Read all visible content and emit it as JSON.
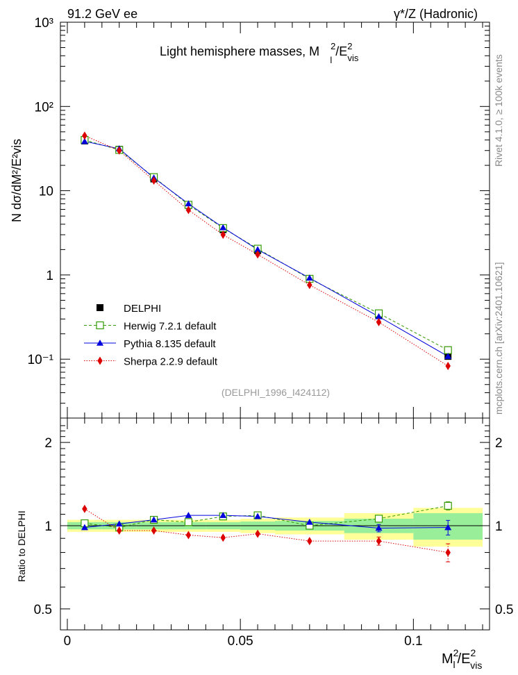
{
  "header": {
    "left": "91.2 GeV ee",
    "right": "γ*/Z (Hadronic)"
  },
  "side_labels": {
    "rivet": "Rivet 4.1.0, ≥ 100k events",
    "mcplots": "mcplots.cern.ch [arXiv:2401.10621]"
  },
  "chart_data": [
    {
      "panel": "main",
      "type": "line",
      "title_main": "Light hemisphere masses, M",
      "title_sup": "2",
      "title_sub": "l",
      "title_tail": "/E",
      "title_tail_sup": "2",
      "title_tail_sub": "vis",
      "ylabel": "N  dσ/dM²/E²vis",
      "yscale": "log",
      "ylim": [
        0.02,
        1000
      ],
      "xlim": [
        -0.002,
        0.122
      ],
      "ytick_labels": [
        "10⁻¹",
        "1",
        "10",
        "10²",
        "10³"
      ],
      "ytick_values": [
        0.1,
        1,
        10,
        100,
        1000
      ],
      "watermark": "(DELPHI_1996_I424112)",
      "x": [
        0.005,
        0.015,
        0.025,
        0.035,
        0.045,
        0.055,
        0.07,
        0.09,
        0.11
      ],
      "series": [
        {
          "name": "DELPHI",
          "color": "#000000",
          "marker": "square-filled",
          "values": [
            39,
            31,
            13.8,
            6.7,
            3.45,
            1.95,
            0.9,
            0.33,
            0.108
          ]
        },
        {
          "name": "Herwig 7.2.1 default",
          "color": "#339900",
          "marker": "square-open",
          "linestyle": "dashed",
          "values": [
            40,
            30.5,
            14.5,
            6.8,
            3.6,
            2.05,
            0.9,
            0.35,
            0.128
          ]
        },
        {
          "name": "Pythia 8.135 default",
          "color": "#0000dd",
          "marker": "triangle",
          "linestyle": "solid",
          "values": [
            38.5,
            31.5,
            14.2,
            7.0,
            3.65,
            2.0,
            0.92,
            0.32,
            0.108
          ]
        },
        {
          "name": "Sherpa 2.2.9 default",
          "color": "#dd0000",
          "marker": "diamond",
          "linestyle": "dotted",
          "values": [
            45,
            30,
            13.2,
            5.9,
            3.0,
            1.75,
            0.76,
            0.275,
            0.083
          ]
        }
      ]
    },
    {
      "panel": "ratio",
      "type": "line",
      "ylabel": "Ratio to DELPHI",
      "yscale": "log",
      "ylim": [
        0.42,
        2.45
      ],
      "ytick_labels": [
        "0.5",
        "1",
        "2"
      ],
      "ytick_values": [
        0.5,
        1,
        2
      ],
      "xlabel_main": "M",
      "xlabel_sup": "2",
      "xlabel_sub": "l",
      "xlabel_tail": "/E",
      "xlabel_tail_sup": "2",
      "xlabel_tail_sub": "vis",
      "xtick_labels": [
        "0",
        "0.05",
        "0.1"
      ],
      "xtick_values": [
        0,
        0.05,
        0.1
      ],
      "bins": [
        {
          "lo": 0.0,
          "hi": 0.01,
          "stat": 0.03,
          "tot": 0.05
        },
        {
          "lo": 0.01,
          "hi": 0.02,
          "stat": 0.03,
          "tot": 0.05
        },
        {
          "lo": 0.02,
          "hi": 0.03,
          "stat": 0.03,
          "tot": 0.05
        },
        {
          "lo": 0.03,
          "hi": 0.04,
          "stat": 0.03,
          "tot": 0.05
        },
        {
          "lo": 0.04,
          "hi": 0.05,
          "stat": 0.03,
          "tot": 0.05
        },
        {
          "lo": 0.05,
          "hi": 0.06,
          "stat": 0.035,
          "tot": 0.06
        },
        {
          "lo": 0.06,
          "hi": 0.08,
          "stat": 0.04,
          "tot": 0.07
        },
        {
          "lo": 0.08,
          "hi": 0.1,
          "stat": 0.06,
          "tot": 0.11
        },
        {
          "lo": 0.1,
          "hi": 0.12,
          "stat": 0.11,
          "tot": 0.16
        }
      ],
      "x": [
        0.005,
        0.015,
        0.025,
        0.035,
        0.045,
        0.055,
        0.07,
        0.09,
        0.11
      ],
      "series": [
        {
          "name": "Herwig 7.2.1 default",
          "color": "#339900",
          "marker": "square-open",
          "linestyle": "dashed",
          "values": [
            1.02,
            0.985,
            1.05,
            1.03,
            1.08,
            1.09,
            1.0,
            1.06,
            1.18
          ],
          "errors": [
            0,
            0,
            0,
            0,
            0,
            0,
            0,
            0.02,
            0.04
          ]
        },
        {
          "name": "Pythia 8.135 default",
          "color": "#0000dd",
          "marker": "triangle",
          "linestyle": "solid",
          "values": [
            0.985,
            1.015,
            1.05,
            1.09,
            1.09,
            1.08,
            1.03,
            0.98,
            0.985
          ],
          "errors": [
            0,
            0,
            0,
            0,
            0,
            0,
            0,
            0.03,
            0.06
          ]
        },
        {
          "name": "Sherpa 2.2.9 default",
          "color": "#dd0000",
          "marker": "diamond",
          "linestyle": "dotted",
          "values": [
            1.15,
            0.96,
            0.96,
            0.925,
            0.905,
            0.935,
            0.88,
            0.88,
            0.8
          ],
          "errors": [
            0,
            0,
            0,
            0,
            0,
            0,
            0,
            0.03,
            0.06
          ]
        }
      ]
    }
  ]
}
